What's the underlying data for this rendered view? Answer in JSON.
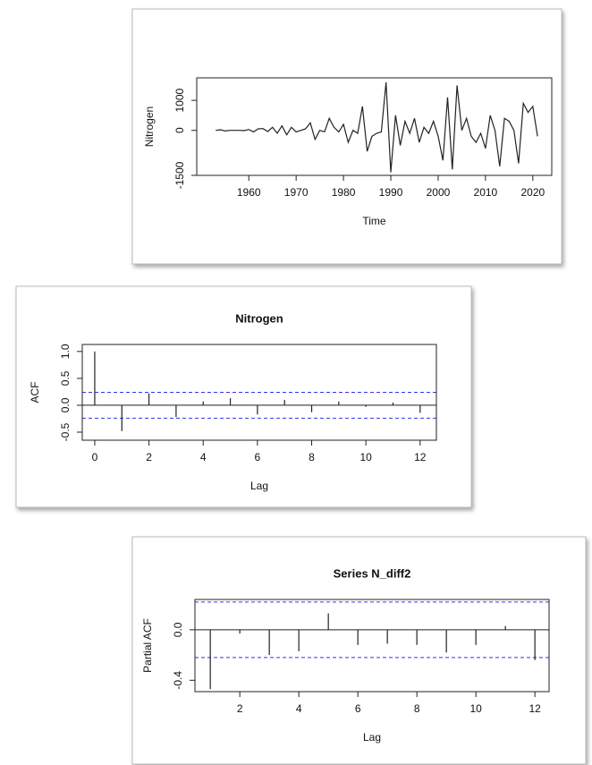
{
  "chart_data": [
    {
      "type": "line",
      "x_label": "Time",
      "y_label": "Nitrogen",
      "color": "#222222",
      "x": [
        1953,
        1954,
        1955,
        1956,
        1957,
        1958,
        1959,
        1960,
        1961,
        1962,
        1963,
        1964,
        1965,
        1966,
        1967,
        1968,
        1969,
        1970,
        1971,
        1972,
        1973,
        1974,
        1975,
        1976,
        1977,
        1978,
        1979,
        1980,
        1981,
        1982,
        1983,
        1984,
        1985,
        1986,
        1987,
        1988,
        1989,
        1990,
        1991,
        1992,
        1993,
        1994,
        1995,
        1996,
        1997,
        1998,
        1999,
        2000,
        2001,
        2002,
        2003,
        2004,
        2005,
        2006,
        2007,
        2008,
        2009,
        2010,
        2011,
        2012,
        2013,
        2014,
        2015,
        2016,
        2017,
        2018,
        2019,
        2020,
        2021
      ],
      "values": [
        0,
        20,
        -20,
        0,
        0,
        0,
        -10,
        30,
        -50,
        50,
        60,
        -40,
        100,
        -100,
        150,
        -150,
        100,
        -50,
        0,
        50,
        250,
        -300,
        0,
        -50,
        400,
        100,
        -50,
        200,
        -400,
        0,
        -100,
        800,
        -700,
        -200,
        -100,
        -50,
        1600,
        -1400,
        500,
        -500,
        300,
        -100,
        400,
        -400,
        100,
        -100,
        300,
        -200,
        -1000,
        1100,
        -1300,
        1500,
        0,
        400,
        -200,
        -400,
        -100,
        -600,
        500,
        0,
        -1200,
        400,
        300,
        0,
        -1100,
        900,
        600,
        800,
        -200
      ],
      "xlim": [
        1949,
        2024
      ],
      "xticks": [
        1960,
        1970,
        1980,
        1990,
        2000,
        2010,
        2020
      ],
      "ylim": [
        -1500,
        1750
      ],
      "yticks": [
        -1500,
        0,
        1000
      ]
    },
    {
      "type": "bar",
      "title": "Nitrogen",
      "x_label": "Lag",
      "y_label": "ACF",
      "color": "#222222",
      "ci_color": "#3333ee",
      "x": [
        0,
        1,
        2,
        3,
        4,
        5,
        6,
        7,
        8,
        9,
        10,
        11,
        12
      ],
      "values": [
        1,
        -0.48,
        0.22,
        -0.22,
        0.07,
        0.13,
        -0.17,
        0.1,
        -0.13,
        0.07,
        -0.03,
        0.05,
        -0.14
      ],
      "ci": 0.24,
      "xlim": [
        -0.46,
        12.6
      ],
      "xticks": [
        0,
        2,
        4,
        6,
        8,
        10,
        12
      ],
      "ylim": [
        -0.65,
        1.13
      ],
      "yticks": [
        -0.5,
        {
          "value": 0,
          "label": "0.0"
        },
        0.5,
        {
          "value": 1,
          "label": "1.0"
        }
      ]
    },
    {
      "type": "bar",
      "title": "Series N_diff2",
      "x_label": "Lag",
      "y_label": "Partial ACF",
      "color": "#222222",
      "ci_color": "#3333ee",
      "x": [
        1,
        2,
        3,
        4,
        5,
        6,
        7,
        8,
        9,
        10,
        11,
        12
      ],
      "values": [
        -0.47,
        -0.03,
        -0.2,
        -0.17,
        0.13,
        -0.12,
        -0.11,
        -0.12,
        -0.18,
        -0.12,
        0.03,
        -0.24
      ],
      "ci": 0.22,
      "xlim": [
        0.48,
        12.48
      ],
      "xticks": [
        2,
        4,
        6,
        8,
        10,
        12
      ],
      "ylim": [
        -0.49,
        0.24
      ],
      "yticks": [
        -0.4,
        {
          "value": 0,
          "label": "0.0"
        }
      ]
    }
  ]
}
